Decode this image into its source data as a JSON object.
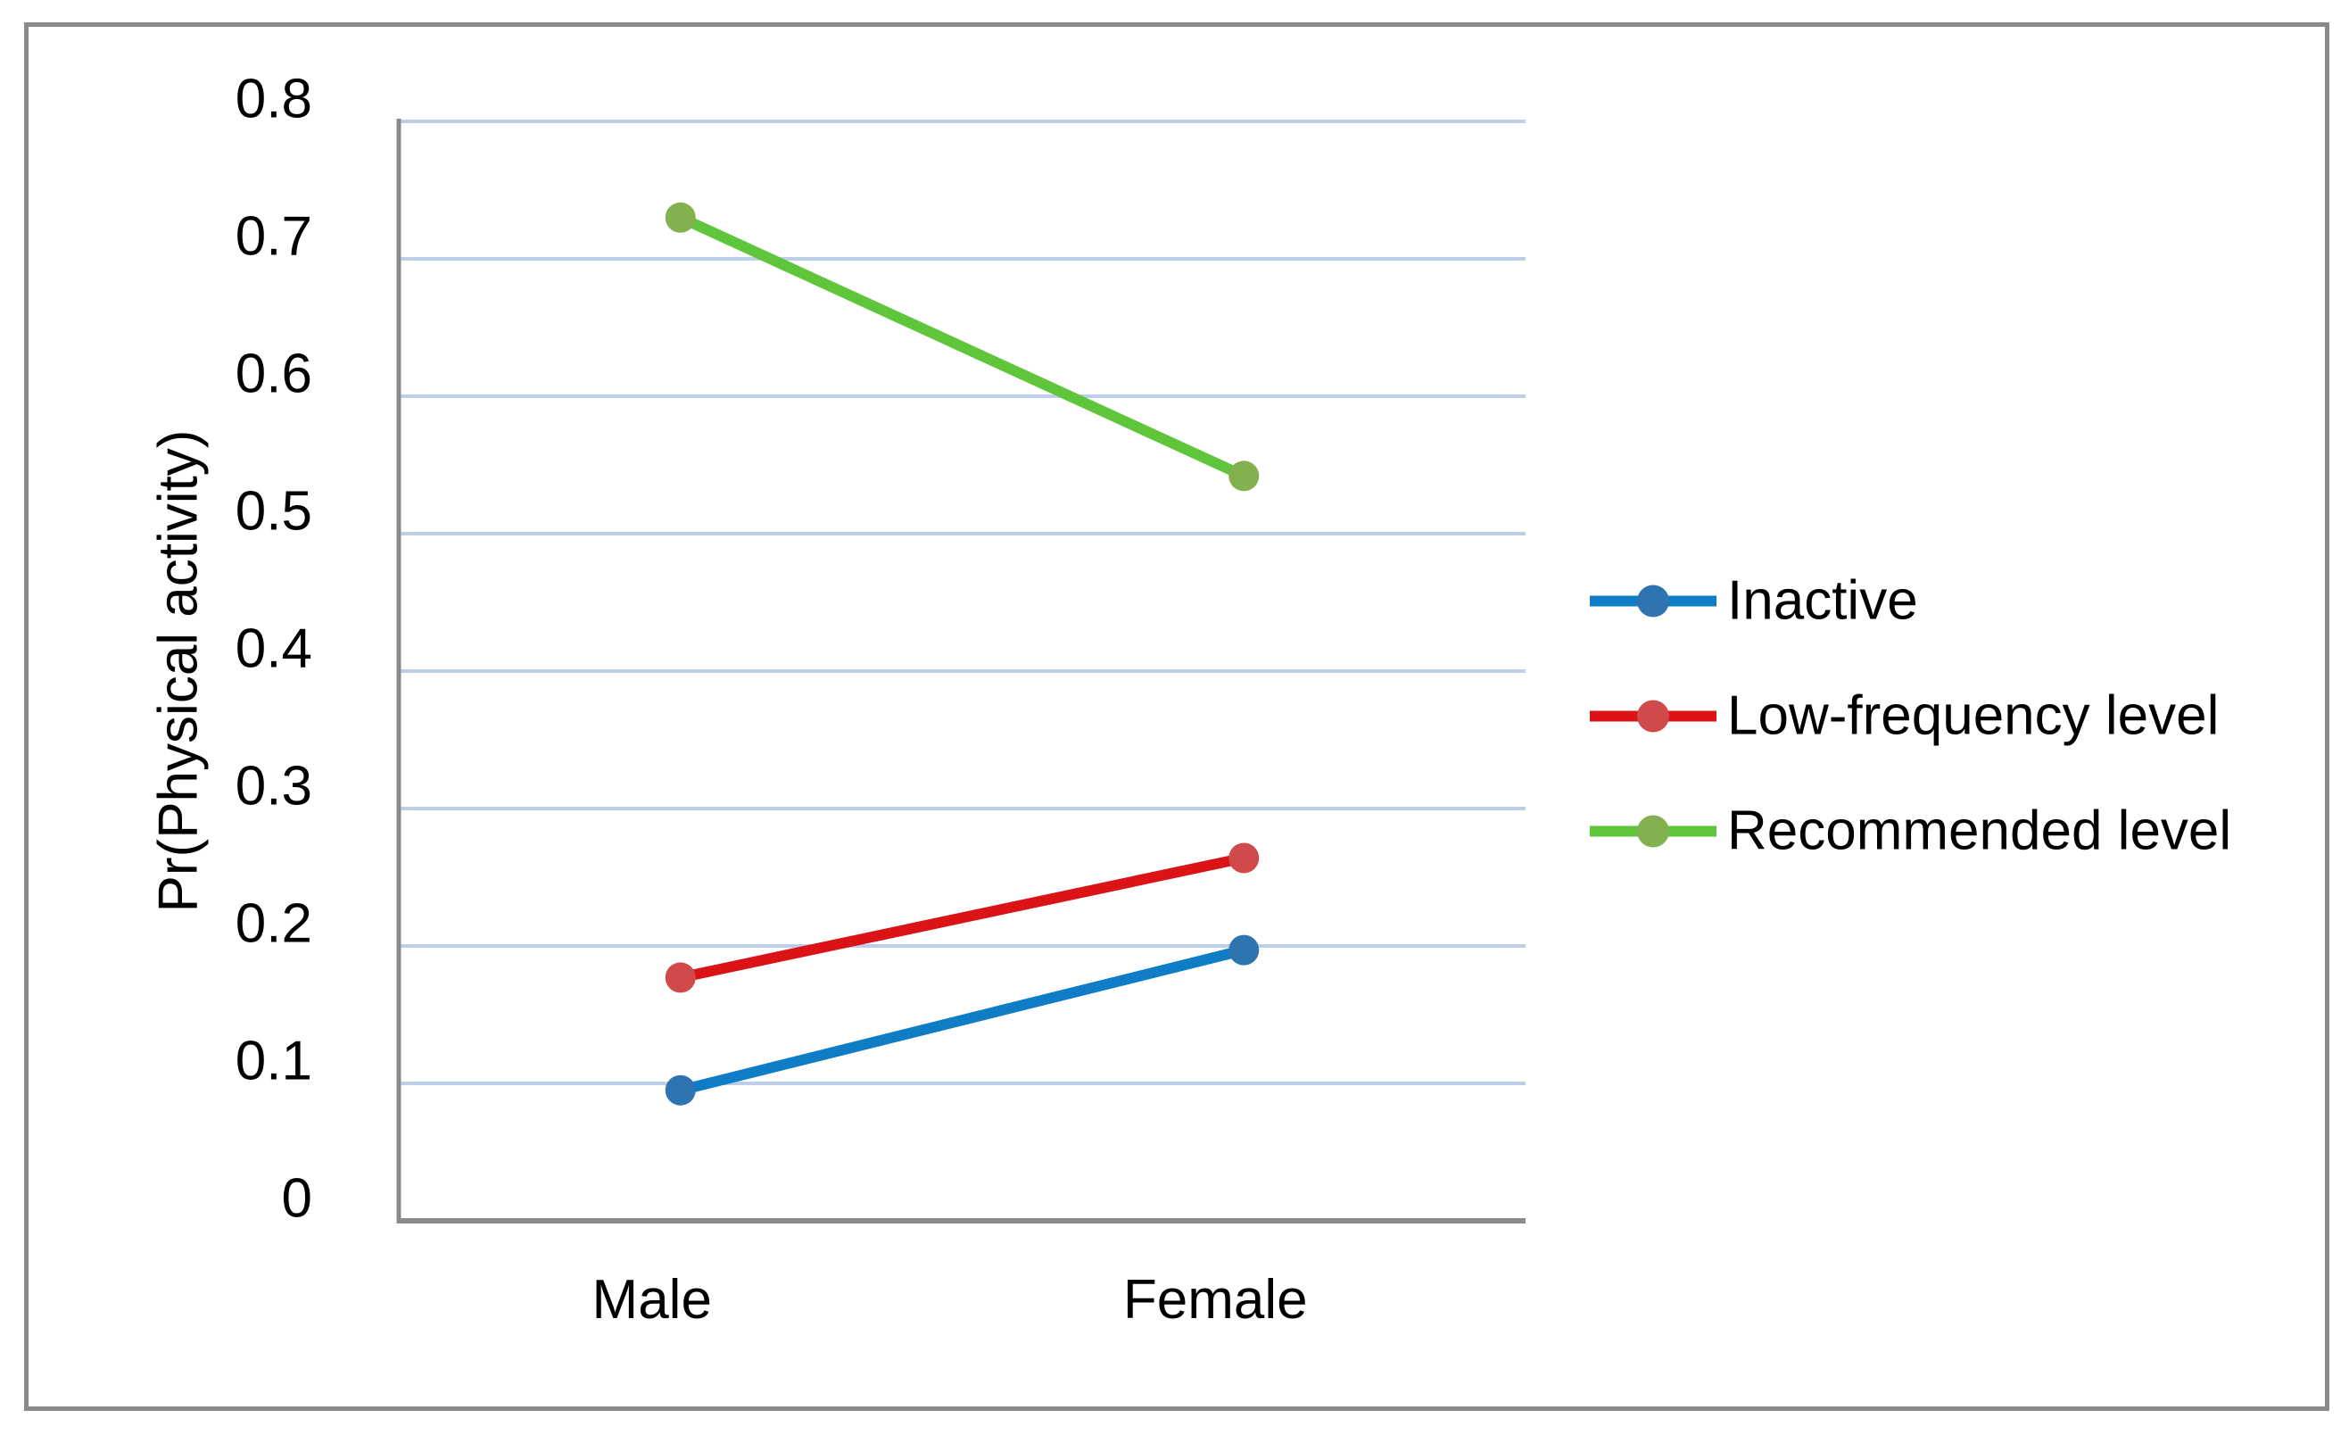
{
  "chart_data": {
    "type": "line",
    "title": "",
    "xlabel": "",
    "ylabel": "Pr(Physical activity)",
    "categories": [
      "Male",
      "Female"
    ],
    "series": [
      {
        "name": "Inactive",
        "values": [
          0.095,
          0.197
        ],
        "line_color": "#0e7dc6",
        "marker_color": "#2e74b0"
      },
      {
        "name": "Low-frequency level",
        "values": [
          0.177,
          0.264
        ],
        "line_color": "#db1216",
        "marker_color": "#d04a4c"
      },
      {
        "name": "Recommended level",
        "values": [
          0.73,
          0.542
        ],
        "line_color": "#5fc63c",
        "marker_color": "#84b150"
      }
    ],
    "ylim": [
      0,
      0.8
    ],
    "yticks": [
      "0",
      "0.1",
      "0.2",
      "0.3",
      "0.4",
      "0.5",
      "0.6",
      "0.7",
      "0.8"
    ],
    "ytick_values": [
      0,
      0.1,
      0.2,
      0.3,
      0.4,
      0.5,
      0.6,
      0.7,
      0.8
    ],
    "grid": "horizontal",
    "legend_position": "right",
    "colors": {
      "gridline": "#bdcfe8",
      "axis": "#8a8a8a",
      "frame_border": "#8a8a8a",
      "text": "#000000",
      "background": "#ffffff"
    }
  }
}
